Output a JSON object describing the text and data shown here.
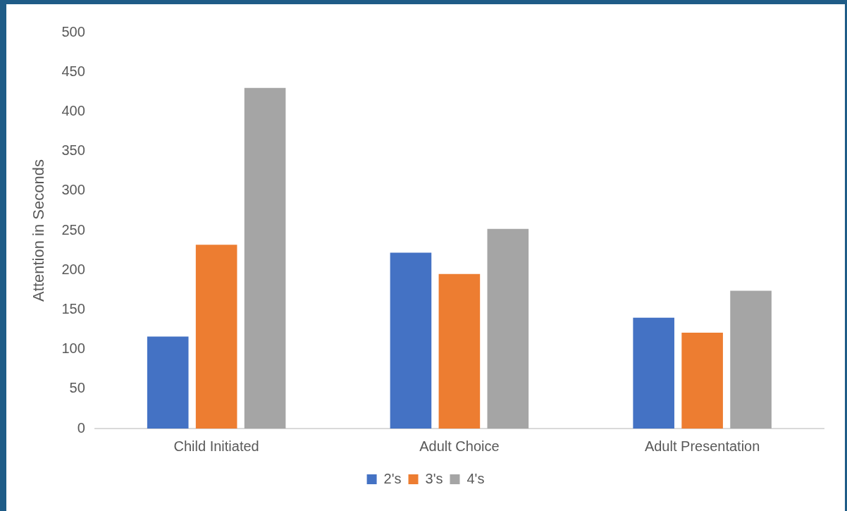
{
  "chart_data": {
    "type": "bar",
    "ylabel": "Attention in Seconds",
    "categories": [
      "Child Initiated",
      "Adult Choice",
      "Adult Presentation"
    ],
    "series": [
      {
        "name": "2's",
        "color": "#4472c4",
        "values": [
          116,
          222,
          140
        ]
      },
      {
        "name": "3's",
        "color": "#ed7d31",
        "values": [
          232,
          195,
          121
        ]
      },
      {
        "name": "4's",
        "color": "#a5a5a5",
        "values": [
          430,
          252,
          174
        ]
      }
    ],
    "ylim": [
      0,
      500
    ],
    "yticks": [
      0,
      50,
      100,
      150,
      200,
      250,
      300,
      350,
      400,
      450,
      500
    ],
    "grid": false,
    "legend": "bottom"
  }
}
